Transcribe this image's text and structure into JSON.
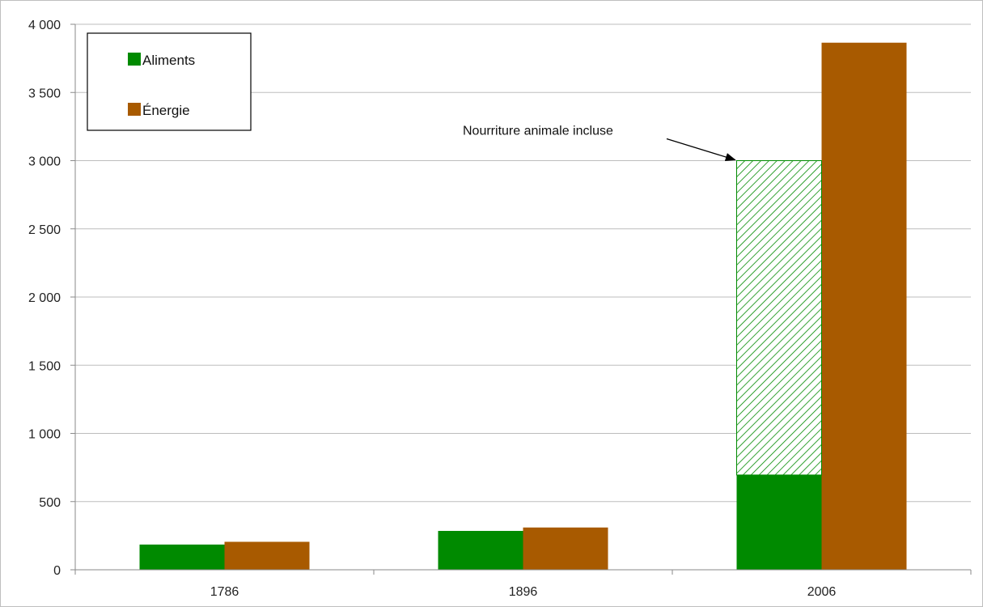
{
  "chart_data": {
    "type": "bar",
    "categories": [
      "1786",
      "1896",
      "2006"
    ],
    "series": [
      {
        "name": "Aliments",
        "values": [
          185,
          285,
          695
        ],
        "color": "#008a00"
      },
      {
        "name": "Énergie",
        "values": [
          205,
          310,
          3865
        ],
        "color": "#a85a00"
      }
    ],
    "stacked_extra": {
      "series": "Aliments",
      "category": "2006",
      "from": 695,
      "to": 3000,
      "fill": "hatched-green",
      "annotation": "Nourriture animale incluse"
    },
    "ylim": [
      0,
      4000
    ],
    "yticks": [
      {
        "value": 0,
        "label": "0"
      },
      {
        "value": 500,
        "label": "500"
      },
      {
        "value": 1000,
        "label": "1 000"
      },
      {
        "value": 1500,
        "label": "1 500"
      },
      {
        "value": 2000,
        "label": "2 000"
      },
      {
        "value": 2500,
        "label": "2 500"
      },
      {
        "value": 3000,
        "label": "3 000"
      },
      {
        "value": 3500,
        "label": "3 500"
      },
      {
        "value": 4000,
        "label": "4 000"
      }
    ],
    "grid": true,
    "legend": "top-left",
    "title": "",
    "xlabel": "",
    "ylabel": ""
  }
}
